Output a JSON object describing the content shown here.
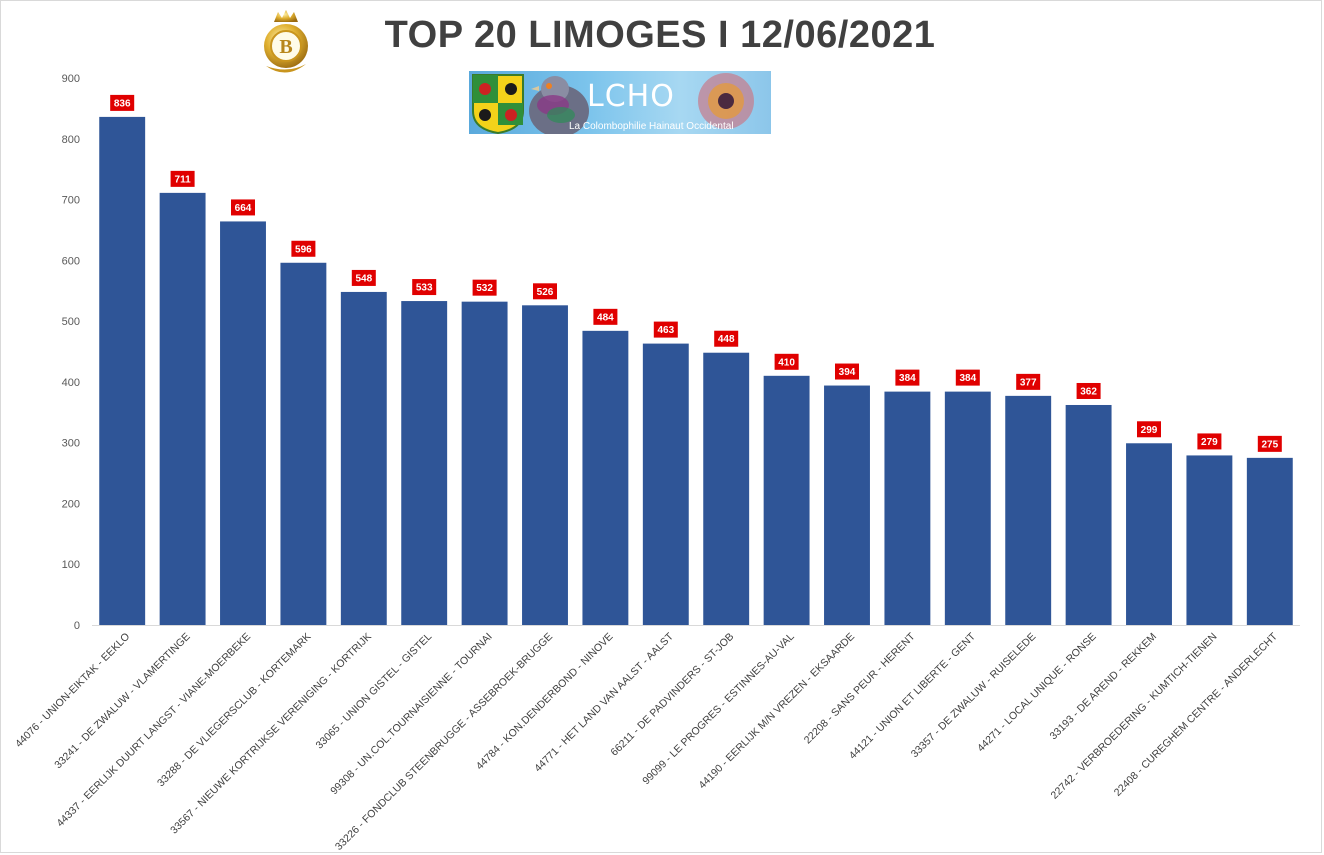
{
  "title": "TOP 20 LIMOGES I 12/06/2021",
  "logo": {
    "letter": "B"
  },
  "banner": {
    "name": "LCHO",
    "subtitle": "La Colombophilie Hainaut Occidental"
  },
  "colors": {
    "bar": "#2f5597",
    "label_bg": "#e00000",
    "axis": "#d9d9d9",
    "title": "#404040"
  },
  "chart_data": {
    "type": "bar",
    "title": "TOP 20 LIMOGES I 12/06/2021",
    "xlabel": "",
    "ylabel": "",
    "ylim": [
      0,
      900
    ],
    "yticks": [
      0,
      100,
      200,
      300,
      400,
      500,
      600,
      700,
      800,
      900
    ],
    "grid": false,
    "data_labels": true,
    "categories": [
      "44076 - UNION-EIKTAK - EEKLO",
      "33241 - DE ZWALUW - VLAMERTINGE",
      "44337 - EERLIJK DUURT LANGST - VIANE-MOERBEKE",
      "33288 - DE VLIEGERSCLUB - KORTEMARK",
      "33567 - NIEUWE KORTRIJKSE VERENIGING - KORTRIJK",
      "33065 - UNION GISTEL - GISTEL",
      "99308 - UN.COL.TOURNAISIENNE - TOURNAI",
      "33226 - FONDCLUB STEENBRUGGE - ASSEBROEK-BRUGGE",
      "44784 - KON.DENDERBOND - NINOVE",
      "44771 - HET LAND VAN AALST - AALST",
      "66211 - DE PADVINDERS - ST-JOB",
      "99099 - LE PROGRES - ESTINNES-AU-VAL",
      "44190 - EERLIJK M/N VREZEN - EKSAARDE",
      "22208 - SANS PEUR - HERENT",
      "44121 - UNION ET LIBERTE - GENT",
      "33357 - DE ZWALUW - RUISELEDE",
      "44271 - LOCAL UNIQUE - RONSE",
      "33193 - DE AREND - REKKEM",
      "22742 - VERBROEDERING - KUMTICH-TIENEN",
      "22408 - CUREGHEM CENTRE - ANDERLECHT"
    ],
    "values": [
      836,
      711,
      664,
      596,
      548,
      533,
      532,
      526,
      484,
      463,
      448,
      410,
      394,
      384,
      384,
      377,
      362,
      299,
      279,
      275
    ]
  }
}
